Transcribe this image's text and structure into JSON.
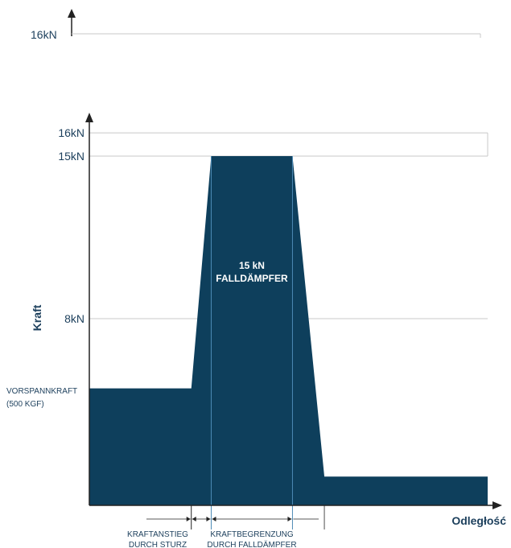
{
  "colors": {
    "fill": "#0e3f5c",
    "axis": "#222222",
    "grid": "#c8c8c8",
    "text": "#1c3f5c",
    "divider": "#4d8bb5"
  },
  "top_strip": {
    "tick_label": "16kN"
  },
  "chart_data": {
    "type": "area",
    "title": "",
    "xlabel": "Odległość",
    "ylabel": "Kraft",
    "ylim": [
      0,
      18
    ],
    "yticks": [
      {
        "value": 16,
        "label": "16kN"
      },
      {
        "value": 15,
        "label": "15kN"
      },
      {
        "value": 8,
        "label": "8kN"
      }
    ],
    "grid": true,
    "x": [
      0,
      12.8,
      15.3,
      25.5,
      29.5,
      50
    ],
    "y": [
      5,
      5,
      15,
      15,
      1.2,
      1.2
    ],
    "xlim": [
      0,
      50
    ],
    "dividers": [
      15.3,
      25.5
    ],
    "annotations": {
      "pretension": [
        "VORSPANNKRAFT",
        "(500 KGF)"
      ],
      "inner": [
        "15  kN",
        "FALLDÄMPFER"
      ],
      "phase1": [
        "KRAFTANSTIEG",
        "DURCH STURZ"
      ],
      "phase2": [
        "KRAFTBEGRENZUNG",
        "DURCH FALLDÄMPFER"
      ]
    }
  }
}
